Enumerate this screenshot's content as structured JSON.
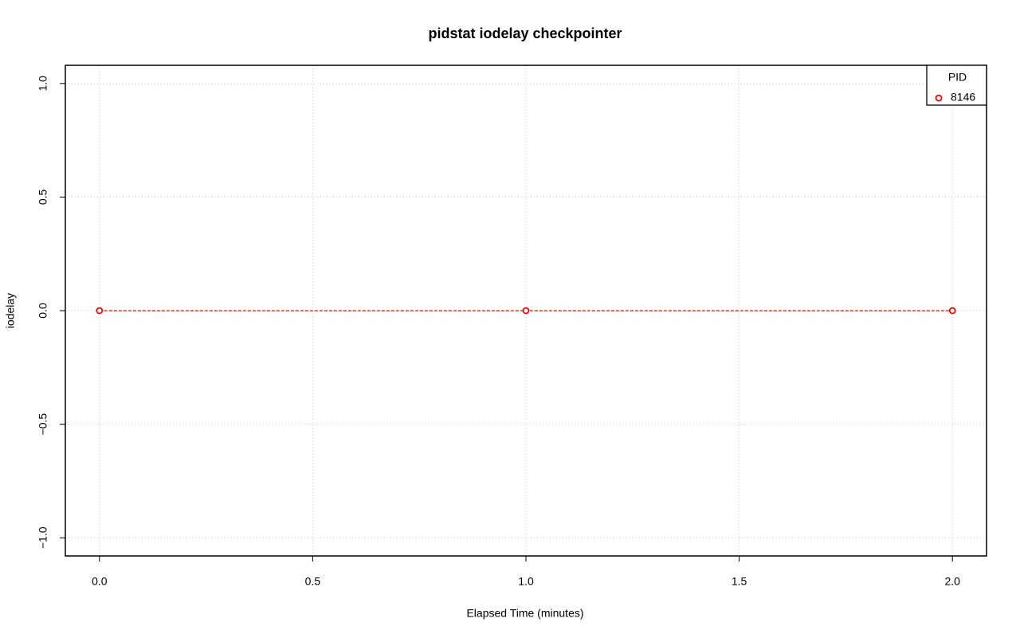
{
  "chart_data": {
    "type": "line",
    "title": "pidstat iodelay checkpointer",
    "x_label": "Elapsed Time (minutes)",
    "y_label": "iodelay",
    "x": [
      0,
      1,
      2
    ],
    "series": [
      {
        "name": "8146",
        "color": "#ff0000",
        "values": [
          0,
          0,
          0
        ]
      }
    ],
    "xlim": [
      -0.08,
      2.08
    ],
    "xticks": [
      {
        "value": 0,
        "label": "0.0"
      },
      {
        "value": 0.5,
        "label": "0.5"
      },
      {
        "value": 1,
        "label": "1.0"
      },
      {
        "value": 1.5,
        "label": "1.5"
      },
      {
        "value": 2,
        "label": "2.0"
      }
    ],
    "ylim": [
      -1.08,
      1.08
    ],
    "yticks": [
      {
        "value": -1,
        "label": "−1.0"
      },
      {
        "value": -0.5,
        "label": "−0.5"
      },
      {
        "value": 0,
        "label": "0.0"
      },
      {
        "value": 0.5,
        "label": "0.5"
      },
      {
        "value": 1,
        "label": "1.0"
      }
    ],
    "grid": true,
    "legend_title": "PID",
    "legend_position": "topright"
  }
}
